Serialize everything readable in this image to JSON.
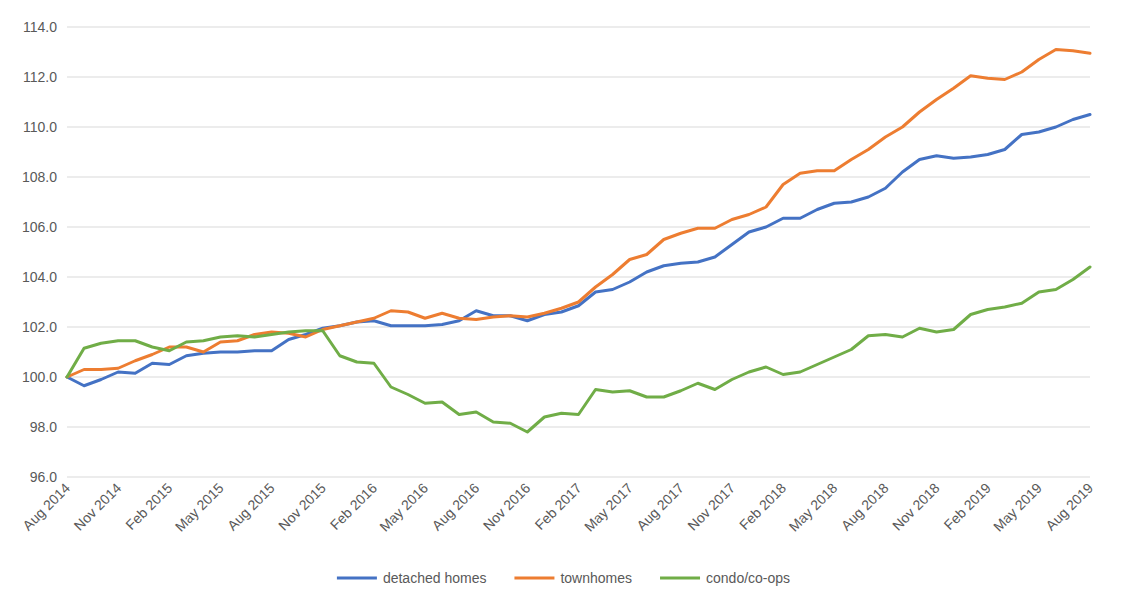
{
  "chart_data": {
    "type": "line",
    "categories": [
      "Aug 2014",
      null,
      null,
      "Nov 2014",
      null,
      null,
      "Feb 2015",
      null,
      null,
      "May 2015",
      null,
      null,
      "Aug 2015",
      null,
      null,
      "Nov 2015",
      null,
      null,
      "Feb 2016",
      null,
      null,
      "May 2016",
      null,
      null,
      "Aug 2016",
      null,
      null,
      "Nov 2016",
      null,
      null,
      "Feb 2017",
      null,
      null,
      "May 2017",
      null,
      null,
      "Aug 2017",
      null,
      null,
      "Nov 2017",
      null,
      null,
      "Feb 2018",
      null,
      null,
      "May 2018",
      null,
      null,
      "Aug 2018",
      null,
      null,
      "Nov 2018",
      null,
      null,
      "Feb 2019",
      null,
      null,
      "May 2019",
      null,
      null,
      "Aug 2019"
    ],
    "series": [
      {
        "name": "detached homes",
        "color": "#4472c4",
        "values": [
          100,
          99.65,
          99.9,
          100.2,
          100.15,
          100.55,
          100.5,
          100.85,
          100.95,
          101.0,
          101.0,
          101.05,
          101.05,
          101.5,
          101.7,
          101.95,
          102.05,
          102.2,
          102.25,
          102.05,
          102.05,
          102.05,
          102.1,
          102.25,
          102.65,
          102.45,
          102.45,
          102.25,
          102.5,
          102.6,
          102.85,
          103.4,
          103.5,
          103.8,
          104.2,
          104.45,
          104.55,
          104.6,
          104.8,
          105.3,
          105.8,
          106.0,
          106.35,
          106.35,
          106.7,
          106.95,
          107.0,
          107.2,
          107.55,
          108.2,
          108.7,
          108.85,
          108.75,
          108.8,
          108.9,
          109.1,
          109.7,
          109.8,
          110.0,
          110.3,
          110.5
        ]
      },
      {
        "name": "townhomes",
        "color": "#ed7d31",
        "values": [
          100,
          100.3,
          100.3,
          100.35,
          100.65,
          100.9,
          101.2,
          101.2,
          101.0,
          101.4,
          101.45,
          101.7,
          101.8,
          101.75,
          101.6,
          101.9,
          102.05,
          102.2,
          102.35,
          102.65,
          102.6,
          102.35,
          102.55,
          102.35,
          102.3,
          102.4,
          102.45,
          102.4,
          102.55,
          102.75,
          103.0,
          103.6,
          104.1,
          104.7,
          104.9,
          105.5,
          105.75,
          105.95,
          105.95,
          106.3,
          106.5,
          106.8,
          107.7,
          108.15,
          108.25,
          108.25,
          108.7,
          109.1,
          109.6,
          110.0,
          110.6,
          111.1,
          111.55,
          112.05,
          111.95,
          111.9,
          112.2,
          112.7,
          113.1,
          113.05,
          112.95
        ]
      },
      {
        "name": "condo/co-ops",
        "color": "#70ad47",
        "values": [
          100,
          101.15,
          101.35,
          101.45,
          101.45,
          101.2,
          101.05,
          101.4,
          101.45,
          101.6,
          101.65,
          101.6,
          101.7,
          101.8,
          101.85,
          101.85,
          100.85,
          100.6,
          100.55,
          99.6,
          99.3,
          98.95,
          99.0,
          98.5,
          98.6,
          98.2,
          98.15,
          97.8,
          98.4,
          98.55,
          98.5,
          99.5,
          99.4,
          99.45,
          99.2,
          99.2,
          99.45,
          99.75,
          99.5,
          99.9,
          100.2,
          100.4,
          100.1,
          100.2,
          100.5,
          100.8,
          101.1,
          101.65,
          101.7,
          101.6,
          101.95,
          101.8,
          101.9,
          102.5,
          102.7,
          102.8,
          102.95,
          103.4,
          103.5,
          103.9,
          104.4
        ]
      }
    ],
    "ylim": [
      96,
      114
    ],
    "yticks": [
      {
        "value": 96,
        "label": "96.0"
      },
      {
        "value": 98,
        "label": "98.0"
      },
      {
        "value": 100,
        "label": "100.0"
      },
      {
        "value": 102,
        "label": "102.0"
      },
      {
        "value": 104,
        "label": "104.0"
      },
      {
        "value": 106,
        "label": "106.0"
      },
      {
        "value": 108,
        "label": "108.0"
      },
      {
        "value": 110,
        "label": "110.0"
      },
      {
        "value": 112,
        "label": "112.0"
      },
      {
        "value": 114,
        "label": "114.0"
      }
    ],
    "grid": true,
    "legend": "bottom"
  }
}
